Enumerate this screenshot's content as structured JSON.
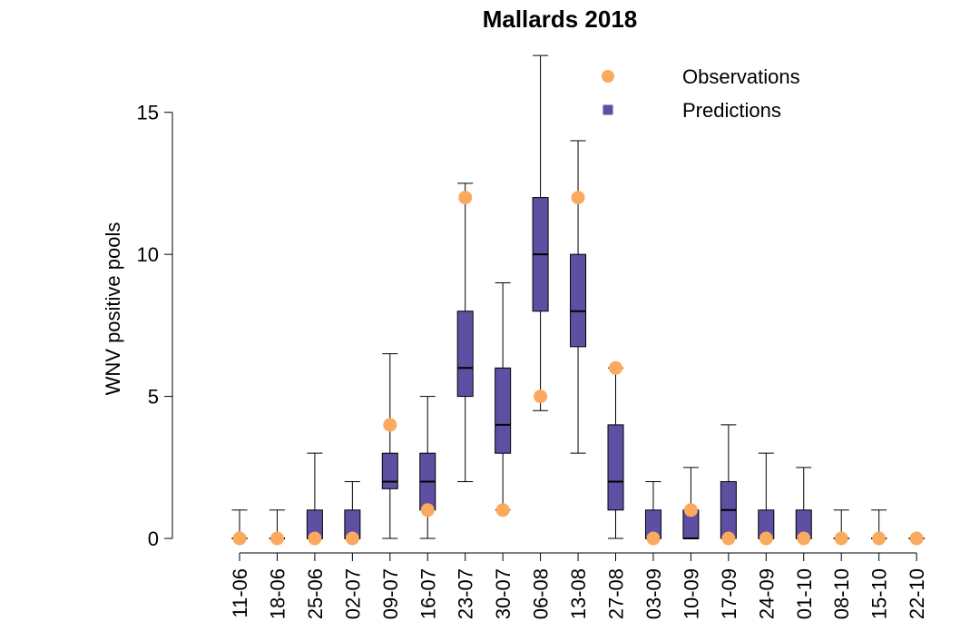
{
  "chart_data": {
    "type": "box",
    "title": "Mallards 2018",
    "xlabel": "",
    "ylabel": "WNV positive pools",
    "ylim": [
      -0.35,
      17.1
    ],
    "yticks": [
      0,
      5,
      10,
      15
    ],
    "categories": [
      "11-06",
      "18-06",
      "25-06",
      "02-07",
      "09-07",
      "16-07",
      "23-07",
      "30-07",
      "06-08",
      "13-08",
      "27-08",
      "03-09",
      "10-09",
      "17-09",
      "24-09",
      "01-10",
      "08-10",
      "15-10",
      "22-10"
    ],
    "series": [
      {
        "name": "Predictions",
        "boxes": [
          {
            "whisker_low": 0,
            "q1": 0,
            "median": 0,
            "q3": 0,
            "whisker_high": 1
          },
          {
            "whisker_low": 0,
            "q1": 0,
            "median": 0,
            "q3": 0,
            "whisker_high": 1
          },
          {
            "whisker_low": 0,
            "q1": 0,
            "median": 0,
            "q3": 1,
            "whisker_high": 3
          },
          {
            "whisker_low": 0,
            "q1": 0,
            "median": 0,
            "q3": 1,
            "whisker_high": 2
          },
          {
            "whisker_low": 0,
            "q1": 1.75,
            "median": 2,
            "q3": 3,
            "whisker_high": 6.5
          },
          {
            "whisker_low": 0,
            "q1": 1,
            "median": 2,
            "q3": 3,
            "whisker_high": 5
          },
          {
            "whisker_low": 2,
            "q1": 5,
            "median": 6,
            "q3": 8,
            "whisker_high": 12.5
          },
          {
            "whisker_low": 1,
            "q1": 3,
            "median": 4,
            "q3": 6,
            "whisker_high": 9
          },
          {
            "whisker_low": 4.5,
            "q1": 8,
            "median": 10,
            "q3": 12,
            "whisker_high": 17
          },
          {
            "whisker_low": 3,
            "q1": 6.75,
            "median": 8,
            "q3": 10,
            "whisker_high": 14
          },
          {
            "whisker_low": 0,
            "q1": 1,
            "median": 2,
            "q3": 4,
            "whisker_high": 6
          },
          {
            "whisker_low": 0,
            "q1": 0,
            "median": 0,
            "q3": 1,
            "whisker_high": 2
          },
          {
            "whisker_low": 0,
            "q1": 0,
            "median": 0,
            "q3": 1,
            "whisker_high": 2.5
          },
          {
            "whisker_low": 0,
            "q1": 0,
            "median": 1,
            "q3": 2,
            "whisker_high": 4
          },
          {
            "whisker_low": 0,
            "q1": 0,
            "median": 0,
            "q3": 1,
            "whisker_high": 3
          },
          {
            "whisker_low": 0,
            "q1": 0,
            "median": 0,
            "q3": 1,
            "whisker_high": 2.5
          },
          {
            "whisker_low": 0,
            "q1": 0,
            "median": 0,
            "q3": 0,
            "whisker_high": 1
          },
          {
            "whisker_low": 0,
            "q1": 0,
            "median": 0,
            "q3": 0,
            "whisker_high": 1
          },
          {
            "whisker_low": 0,
            "q1": 0,
            "median": 0,
            "q3": 0,
            "whisker_high": 0
          }
        ]
      },
      {
        "name": "Observations",
        "values": [
          0,
          0,
          0,
          0,
          4,
          1,
          12,
          1,
          5,
          12,
          6,
          0,
          1,
          0,
          0,
          0,
          0,
          0,
          0
        ]
      }
    ],
    "legend": {
      "position": "top-right",
      "entries": [
        {
          "label": "Observations",
          "marker": "circle"
        },
        {
          "label": "Predictions",
          "marker": "square"
        }
      ]
    },
    "colors": {
      "observations": "#FAAA5F",
      "predictions": "#5E4FA2",
      "axis": "#000000"
    },
    "grid": false
  }
}
